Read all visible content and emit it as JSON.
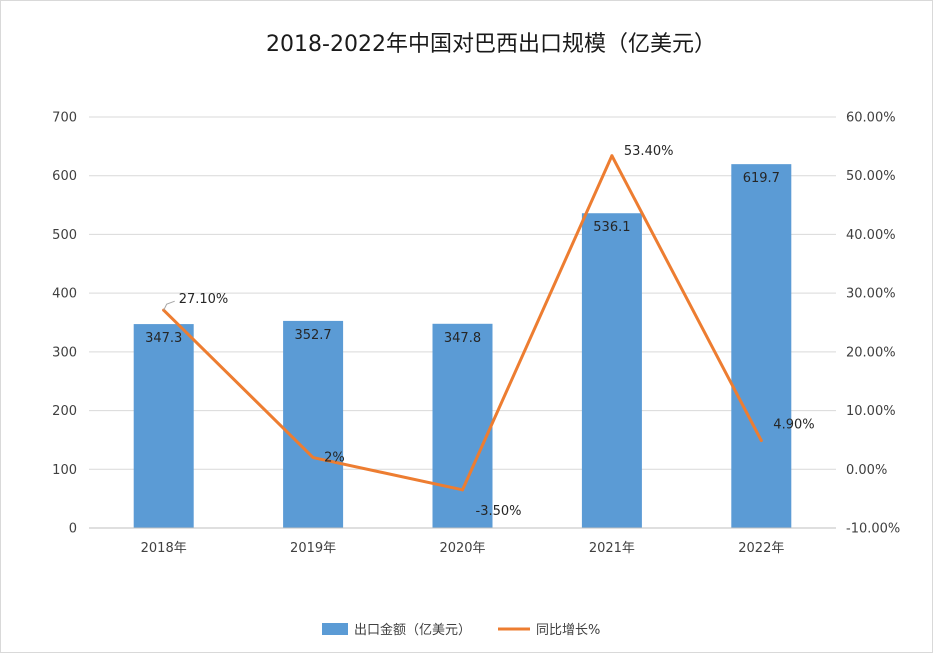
{
  "chart_data": {
    "type": "bar+line",
    "title": "2018-2022年中国对巴西出口规模（亿美元）",
    "categories": [
      "2018年",
      "2019年",
      "2020年",
      "2021年",
      "2022年"
    ],
    "series": [
      {
        "name": "出口金额（亿美元）",
        "type": "bar",
        "axis": "left",
        "color": "#5b9bd5",
        "values": [
          347.3,
          352.7,
          347.8,
          536.1,
          619.7
        ],
        "labels": [
          "347.3",
          "352.7",
          "347.8",
          "536.1",
          "619.7"
        ]
      },
      {
        "name": "同比增长%",
        "type": "line",
        "axis": "right",
        "color": "#ed7d31",
        "values": [
          27.1,
          2,
          -3.5,
          53.4,
          4.9
        ],
        "labels": [
          "27.10%",
          "2%",
          "-3.50%",
          "53.40%",
          "4.90%"
        ]
      }
    ],
    "y_left": {
      "min": 0,
      "max": 700,
      "ticks": [
        0,
        100,
        200,
        300,
        400,
        500,
        600,
        700
      ],
      "tick_labels": [
        "0",
        "100",
        "200",
        "300",
        "400",
        "500",
        "600",
        "700"
      ]
    },
    "y_right": {
      "min": -10,
      "max": 60,
      "ticks": [
        -10,
        0,
        10,
        20,
        30,
        40,
        50,
        60
      ],
      "tick_labels": [
        "-10.00%",
        "0.00%",
        "10.00%",
        "20.00%",
        "30.00%",
        "40.00%",
        "50.00%",
        "60.00%"
      ]
    },
    "grid": true,
    "legend_position": "bottom"
  }
}
